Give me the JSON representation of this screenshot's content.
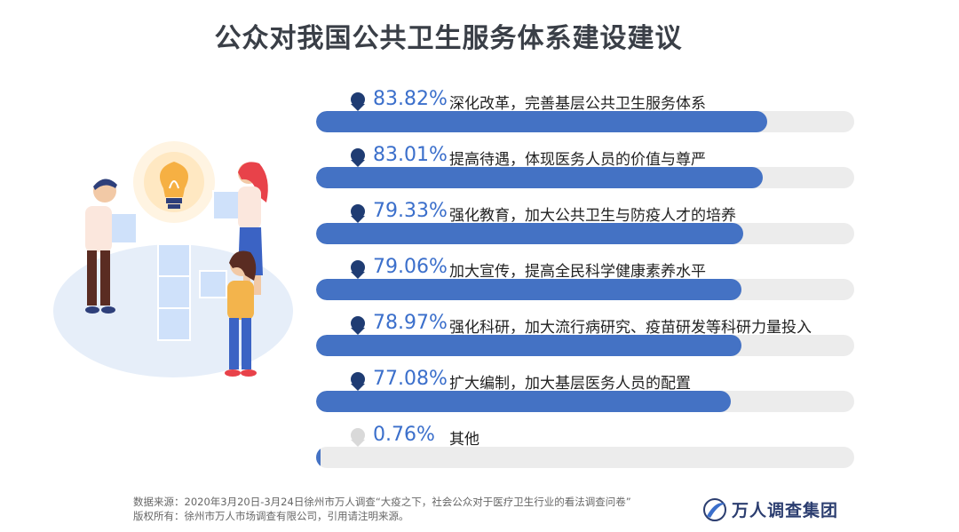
{
  "title": "公众对我国公共卫生服务体系建设建议",
  "chart_data": {
    "type": "bar",
    "title": "公众对我国公共卫生服务体系建设建议",
    "xlim": [
      0,
      100
    ],
    "categories": [
      "深化改革，完善基层公共卫生服务体系",
      "提高待遇，体现医务人员的价值与尊严",
      "强化教育，加大公共卫生与防疫人才的培养",
      "加大宣传，提高全民科学健康素养水平",
      "强化科研，加大流行病研究、疫苗研发等科研力量投入",
      "扩大编制，加大基层医务人员的配置",
      "其他"
    ],
    "values": [
      83.82,
      83.01,
      79.33,
      79.06,
      78.97,
      77.08,
      0.76
    ],
    "labels": [
      "83.82%",
      "83.01%",
      "79.33%",
      "79.06%",
      "78.97%",
      "77.08%",
      "0.76%"
    ],
    "colors": {
      "fill": "#4472c4",
      "track": "#ececec",
      "label": "#3b6fcb"
    }
  },
  "footer": {
    "source": "数据来源：2020年3月20日-3月24日徐州市万人调查“大疫之下，社会公众对于医疗卫生行业的看法调查问卷”",
    "copyright": "版权所有：徐州市万人市场调查有限公司，引用请注明来源。"
  },
  "logo": {
    "text": "万人调查集团",
    "icon": "wanren-logo-icon"
  },
  "illustration": {
    "icon": "teamwork-lightbulb-illustration"
  }
}
